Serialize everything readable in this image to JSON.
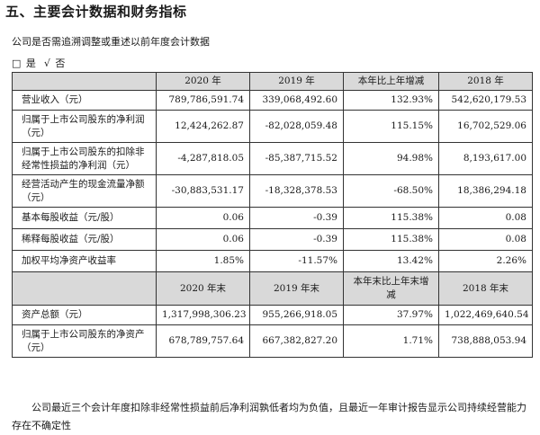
{
  "section_title": "五、主要会计数据和财务指标",
  "restate_question": "公司是否需追溯调整或重述以前年度会计数据",
  "choice": {
    "yes_box": "□",
    "yes_label": "是",
    "no_check": "√",
    "no_label": "否"
  },
  "table": {
    "header_top": [
      "",
      "2020 年",
      "2019 年",
      "本年比上年增减",
      "2018 年"
    ],
    "rows_top": [
      {
        "label": "营业收入（元）",
        "cells": [
          "789,786,591.74",
          "339,068,492.60",
          "132.93%",
          "542,620,179.53"
        ]
      },
      {
        "label": "归属于上市公司股东的净利润（元）",
        "cells": [
          "12,424,262.87",
          "-82,028,059.48",
          "115.15%",
          "16,702,529.06"
        ]
      },
      {
        "label": "归属于上市公司股东的扣除非经常性损益的净利润（元）",
        "cells": [
          "-4,287,818.05",
          "-85,387,715.52",
          "94.98%",
          "8,193,617.00"
        ]
      },
      {
        "label": "经营活动产生的现金流量净额（元）",
        "cells": [
          "-30,883,531.17",
          "-18,328,378.53",
          "-68.50%",
          "18,386,294.18"
        ]
      },
      {
        "label": "基本每股收益（元/股）",
        "cells": [
          "0.06",
          "-0.39",
          "115.38%",
          "0.08"
        ]
      },
      {
        "label": "稀释每股收益（元/股）",
        "cells": [
          "0.06",
          "-0.39",
          "115.38%",
          "0.08"
        ]
      },
      {
        "label": "加权平均净资产收益率",
        "cells": [
          "1.85%",
          "-11.57%",
          "13.42%",
          "2.26%"
        ]
      }
    ],
    "header_bottom": [
      "",
      "2020 年末",
      "2019 年末",
      "本年末比上年末增减",
      "2018 年末"
    ],
    "rows_bottom": [
      {
        "label": "资产总额（元）",
        "cells": [
          "1,317,998,306.23",
          "955,266,918.05",
          "37.97%",
          "1,022,469,640.54"
        ]
      },
      {
        "label": "归属于上市公司股东的净资产（元）",
        "cells": [
          "678,789,757.64",
          "667,382,827.20",
          "1.71%",
          "738,888,053.94"
        ]
      }
    ]
  },
  "footer_note": "公司最近三个会计年度扣除非经常性损益前后净利润孰低者均为负值，且最近一年审计报告显示公司持续经营能力存在不确定性"
}
